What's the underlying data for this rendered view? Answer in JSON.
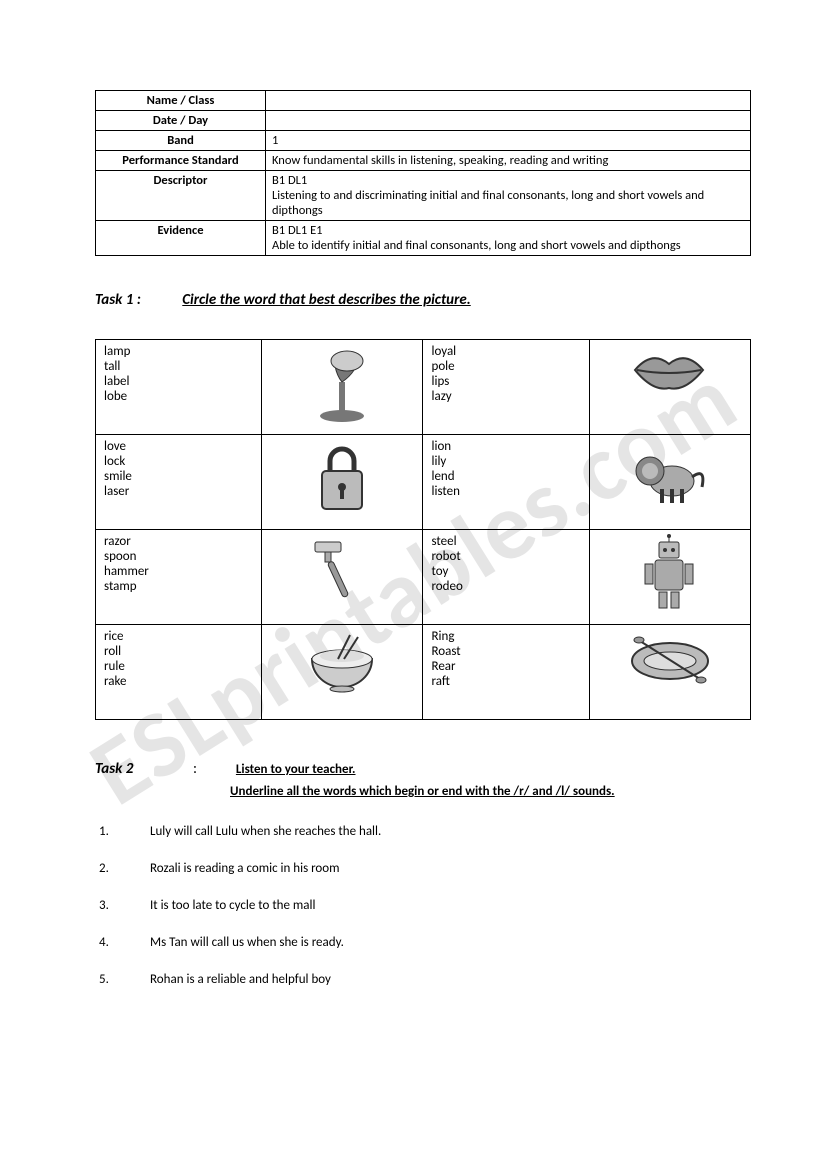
{
  "watermark": "ESLprintables.com",
  "info": {
    "rows": [
      {
        "label": "Name / Class",
        "value": ""
      },
      {
        "label": "Date / Day",
        "value": ""
      },
      {
        "label": "Band",
        "value": "1"
      },
      {
        "label": "Performance Standard",
        "value": "Know fundamental skills in listening, speaking, reading and writing"
      },
      {
        "label": "Descriptor",
        "value": "B1 DL1\nListening to and discriminating initial and final consonants, long and short vowels and dipthongs"
      },
      {
        "label": "Evidence",
        "value": "B1 DL1 E1\nAble to identify initial and final consonants, long and short vowels and dipthongs"
      }
    ]
  },
  "task1": {
    "label": "Task 1 :",
    "instruction": "Circle the word that best describes the picture.",
    "cells": [
      {
        "words": [
          "lamp",
          "tall",
          "label",
          "lobe"
        ],
        "icon": "lamp"
      },
      {
        "words": [
          "loyal",
          "pole",
          "lips",
          "lazy"
        ],
        "icon": "lips"
      },
      {
        "words": [
          "love",
          "lock",
          "smile",
          "laser"
        ],
        "icon": "lock"
      },
      {
        "words": [
          "lion",
          "lily",
          "lend",
          "listen"
        ],
        "icon": "lion"
      },
      {
        "words": [
          "razor",
          "spoon",
          "hammer",
          "stamp"
        ],
        "icon": "razor"
      },
      {
        "words": [
          "steel",
          "robot",
          "toy",
          "rodeo"
        ],
        "icon": "robot"
      },
      {
        "words": [
          "rice",
          "roll",
          "rule",
          "rake"
        ],
        "icon": "rice"
      },
      {
        "words": [
          "Ring",
          "Roast",
          "Rear",
          " raft"
        ],
        "icon": "raft"
      }
    ]
  },
  "task2": {
    "label": "Task 2",
    "colon": ":",
    "line1": "Listen to your teacher.",
    "line2": "Underline all the words which begin or end  with the   /r/  and   /l/ sounds.",
    "sentences": [
      "Luly will call Lulu when she reaches the hall.",
      "Rozali  is reading a comic in his room",
      "It is too late to cycle to the mall",
      "Ms Tan will call us when she is ready.",
      "Rohan is a reliable and helpful boy"
    ]
  },
  "icons": {
    "fill": "#808080",
    "stroke": "#404040"
  }
}
